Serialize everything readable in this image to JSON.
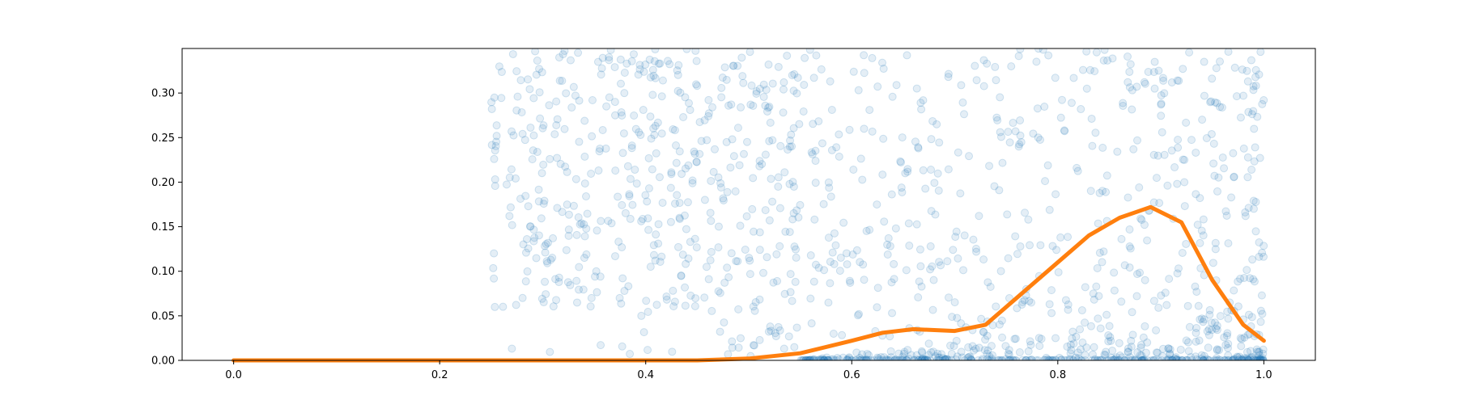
{
  "chart_data": {
    "type": "scatter",
    "title": "",
    "xlabel": "",
    "ylabel": "",
    "xlim": [
      -0.05,
      1.05
    ],
    "ylim": [
      0.0,
      0.35
    ],
    "x_ticks": [
      "0.0",
      "0.2",
      "0.4",
      "0.6",
      "0.8",
      "1.0"
    ],
    "y_ticks": [
      "0.00",
      "0.05",
      "0.10",
      "0.15",
      "0.20",
      "0.25",
      "0.30"
    ],
    "grid": false,
    "legend": "none",
    "series": [
      {
        "kind": "scatter",
        "color": "#1f77b4",
        "opacity": 0.12,
        "x_range": [
          0.25,
          1.0
        ],
        "y_range": [
          0.0,
          0.35
        ],
        "dense_near_zero": true
      },
      {
        "kind": "line",
        "color": "#ff7f0e",
        "x": [
          0.0,
          0.45,
          0.5,
          0.55,
          0.6,
          0.63,
          0.66,
          0.7,
          0.73,
          0.76,
          0.8,
          0.83,
          0.86,
          0.89,
          0.92,
          0.95,
          0.98,
          1.0
        ],
        "y": [
          0.0,
          0.0,
          0.002,
          0.008,
          0.022,
          0.031,
          0.035,
          0.033,
          0.04,
          0.07,
          0.11,
          0.14,
          0.16,
          0.172,
          0.155,
          0.09,
          0.04,
          0.022
        ]
      }
    ]
  }
}
